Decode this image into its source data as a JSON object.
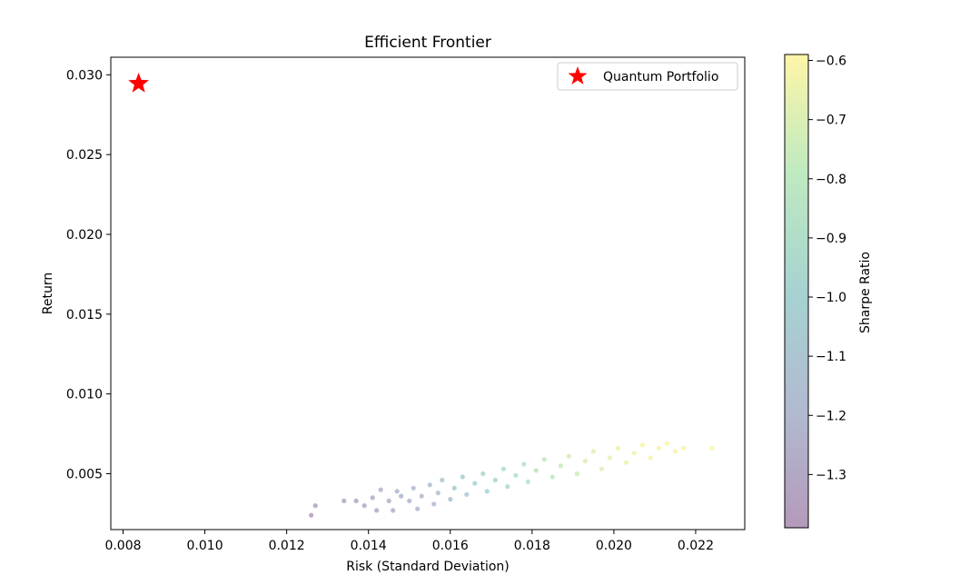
{
  "chart_data": {
    "type": "scatter",
    "title": "Efficient Frontier",
    "xlabel": "Risk (Standard Deviation)",
    "ylabel": "Return",
    "xlim": [
      0.0077,
      0.0232
    ],
    "ylim": [
      0.0015,
      0.0311
    ],
    "xticks": [
      0.008,
      0.01,
      0.012,
      0.014,
      0.016,
      0.018,
      0.02,
      0.022
    ],
    "xtick_labels": [
      "0.008",
      "0.010",
      "0.012",
      "0.014",
      "0.016",
      "0.018",
      "0.020",
      "0.022"
    ],
    "yticks": [
      0.005,
      0.01,
      0.015,
      0.02,
      0.025,
      0.03
    ],
    "ytick_labels": [
      "0.005",
      "0.010",
      "0.015",
      "0.020",
      "0.025",
      "0.030"
    ],
    "grid": false,
    "legend": {
      "position": "top-right",
      "entries": [
        {
          "label": "Quantum Portfolio",
          "marker": "star",
          "color": "#ff0000"
        }
      ]
    },
    "colormap": "viridis",
    "marker_alpha": 0.35,
    "colorbar": {
      "label": "Sharpe Ratio",
      "range": [
        -1.39,
        -0.59
      ],
      "ticks": [
        -1.3,
        -1.2,
        -1.1,
        -1.0,
        -0.9,
        -0.8,
        -0.7,
        -0.6
      ],
      "tick_labels": [
        "−1.3",
        "−1.2",
        "−1.1",
        "−1.0",
        "−0.9",
        "−0.8",
        "−0.7",
        "−0.6"
      ]
    },
    "highlight_point": {
      "name": "Quantum Portfolio",
      "x": 0.00838,
      "y": 0.02945,
      "marker": "star",
      "color": "#ff0000"
    },
    "series": [
      {
        "marker": "circle",
        "colored_by": "Sharpe Ratio",
        "points": [
          [
            0.0126,
            0.0024,
            -1.37
          ],
          [
            0.0127,
            0.003,
            -1.33
          ],
          [
            0.0134,
            0.0033,
            -1.3
          ],
          [
            0.0137,
            0.0033,
            -1.29
          ],
          [
            0.0139,
            0.003,
            -1.3
          ],
          [
            0.0141,
            0.0035,
            -1.25
          ],
          [
            0.0142,
            0.0027,
            -1.28
          ],
          [
            0.0143,
            0.004,
            -1.22
          ],
          [
            0.0145,
            0.0033,
            -1.24
          ],
          [
            0.0146,
            0.0027,
            -1.25
          ],
          [
            0.0147,
            0.0039,
            -1.21
          ],
          [
            0.0148,
            0.0036,
            -1.21
          ],
          [
            0.015,
            0.0033,
            -1.2
          ],
          [
            0.0151,
            0.0041,
            -1.18
          ],
          [
            0.0152,
            0.0028,
            -1.2
          ],
          [
            0.0153,
            0.0036,
            -1.18
          ],
          [
            0.0155,
            0.0043,
            -1.14
          ],
          [
            0.0156,
            0.0031,
            -1.16
          ],
          [
            0.0157,
            0.0038,
            -1.13
          ],
          [
            0.0158,
            0.0046,
            -1.08
          ],
          [
            0.016,
            0.0034,
            -1.11
          ],
          [
            0.0161,
            0.0041,
            -1.07
          ],
          [
            0.0163,
            0.0048,
            -1.03
          ],
          [
            0.0164,
            0.0037,
            -1.05
          ],
          [
            0.0166,
            0.0044,
            -1.0
          ],
          [
            0.0168,
            0.005,
            -0.97
          ],
          [
            0.0169,
            0.0039,
            -0.99
          ],
          [
            0.0171,
            0.0046,
            -0.95
          ],
          [
            0.0173,
            0.0053,
            -0.91
          ],
          [
            0.0174,
            0.0042,
            -0.93
          ],
          [
            0.0176,
            0.0049,
            -0.88
          ],
          [
            0.0178,
            0.0056,
            -0.85
          ],
          [
            0.0179,
            0.0045,
            -0.86
          ],
          [
            0.0181,
            0.0052,
            -0.82
          ],
          [
            0.0183,
            0.0059,
            -0.79
          ],
          [
            0.0185,
            0.0048,
            -0.8
          ],
          [
            0.0187,
            0.0055,
            -0.76
          ],
          [
            0.0189,
            0.0061,
            -0.73
          ],
          [
            0.0191,
            0.005,
            -0.74
          ],
          [
            0.0193,
            0.0058,
            -0.7
          ],
          [
            0.0195,
            0.0064,
            -0.68
          ],
          [
            0.0197,
            0.0053,
            -0.69
          ],
          [
            0.0199,
            0.006,
            -0.66
          ],
          [
            0.0201,
            0.0066,
            -0.64
          ],
          [
            0.0203,
            0.0057,
            -0.65
          ],
          [
            0.0205,
            0.0063,
            -0.63
          ],
          [
            0.0207,
            0.0068,
            -0.61
          ],
          [
            0.0209,
            0.006,
            -0.62
          ],
          [
            0.0211,
            0.0066,
            -0.61
          ],
          [
            0.0213,
            0.0069,
            -0.6
          ],
          [
            0.0215,
            0.0064,
            -0.61
          ],
          [
            0.0217,
            0.0066,
            -0.6
          ],
          [
            0.0224,
            0.0066,
            -0.6
          ]
        ]
      }
    ]
  }
}
